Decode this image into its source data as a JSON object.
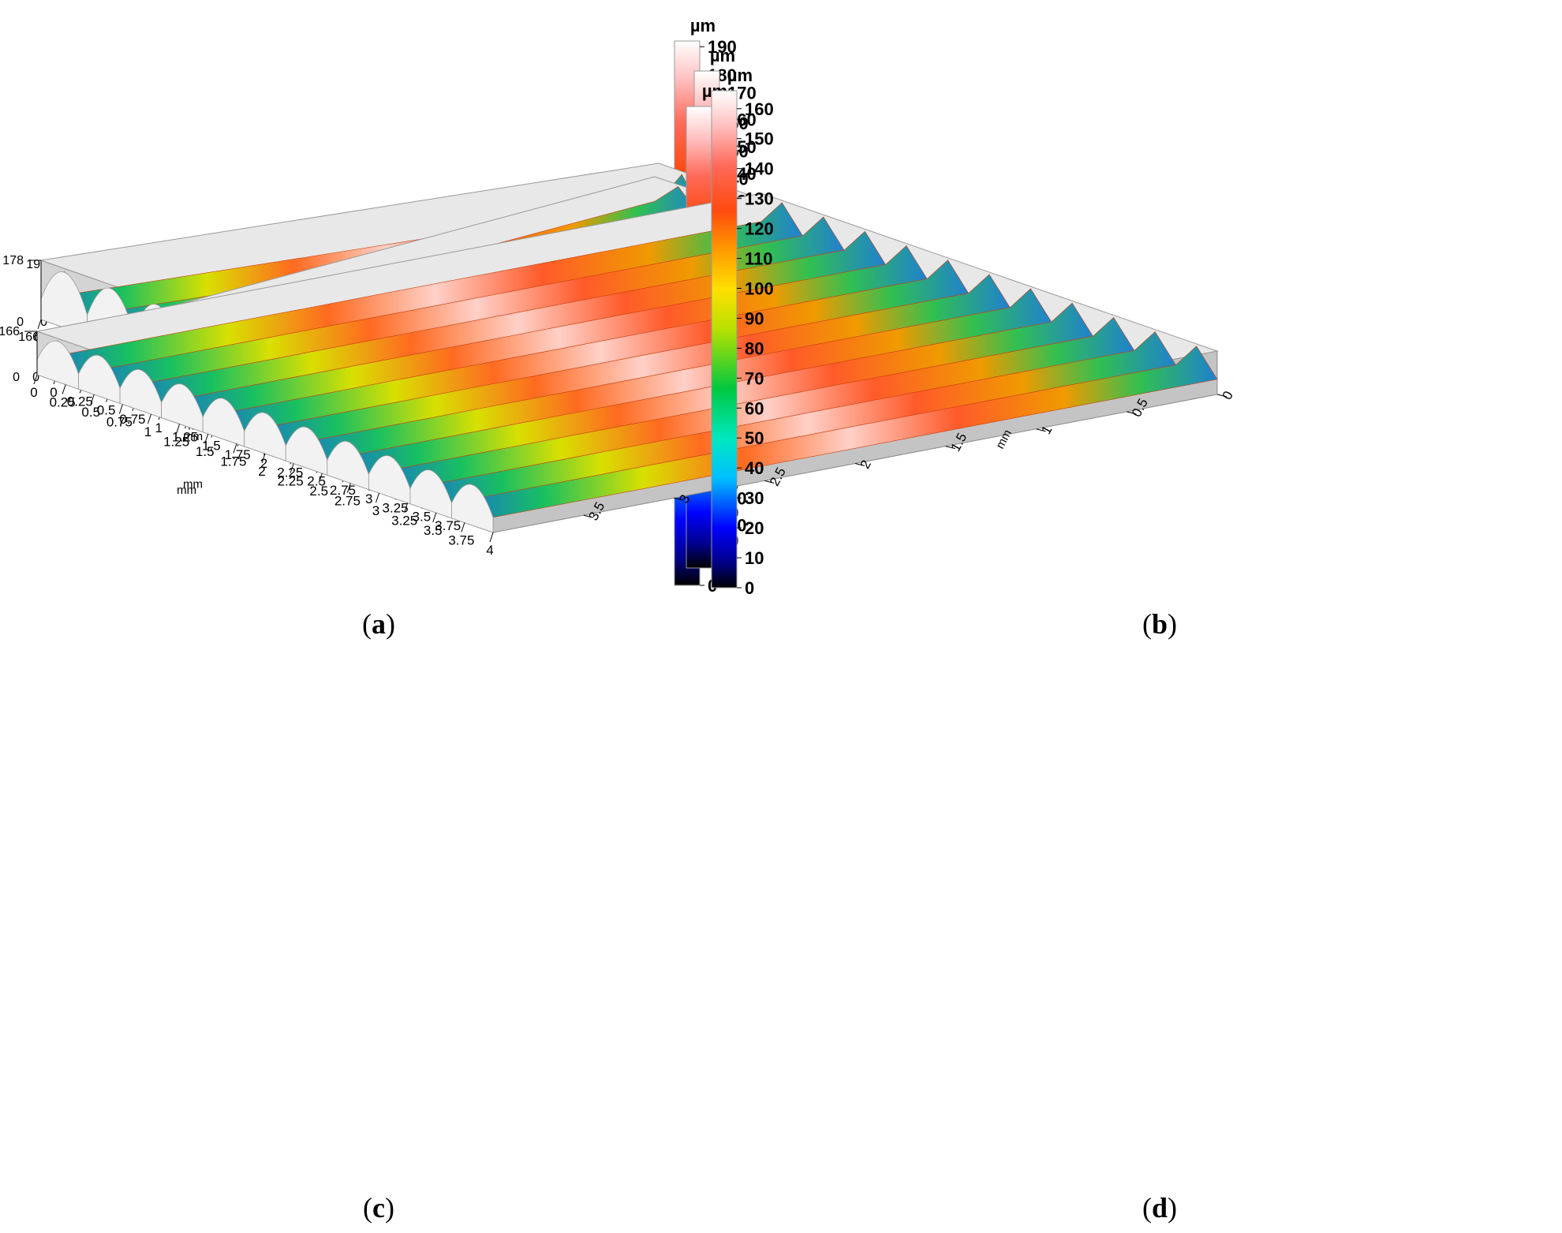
{
  "chart_data": [
    {
      "type": "surface3d",
      "caption": "a",
      "unit": "µm",
      "z_tick_labels": [
        "0",
        "192"
      ],
      "x_axis": {
        "label": "mm",
        "ticks": [
          "0",
          "0.5",
          "1",
          "1.5",
          "2",
          "2.5",
          "3",
          "3.5",
          "4"
        ]
      },
      "y_axis": {
        "label": "mm",
        "ticks": [
          "0",
          "0.5",
          "1",
          "1.5",
          "2",
          "2.5",
          "3",
          "3.5",
          "4"
        ]
      },
      "colorbar": {
        "ticks": [
          "0",
          "10",
          "20",
          "30",
          "40",
          "50",
          "60",
          "70",
          "80",
          "90",
          "100",
          "110",
          "120",
          "130",
          "140",
          "150",
          "160",
          "170",
          "180",
          "190"
        ],
        "range": [
          0,
          192
        ]
      },
      "ridges": 9
    },
    {
      "type": "surface3d",
      "caption": "b",
      "unit": "µm",
      "z_tick_labels": [
        "0",
        "178"
      ],
      "x_axis": {
        "label": "mm",
        "ticks": [
          "0",
          "0.25",
          "0.5",
          "0.75",
          "1",
          "1.25",
          "1.5",
          "1.75",
          "2",
          "2.25",
          "2.5",
          "2.75",
          "3",
          "3.25",
          "3.5",
          "3.75"
        ]
      },
      "y_axis": {
        "label": "mm",
        "ticks": [
          "0",
          "0.5",
          "1",
          "1.5",
          "2",
          "2.5",
          "3",
          "3.5"
        ]
      },
      "colorbar": {
        "ticks": [
          "0",
          "10",
          "20",
          "30",
          "40",
          "50",
          "60",
          "70",
          "80",
          "90",
          "100",
          "110",
          "120",
          "130",
          "140",
          "150",
          "160",
          "170"
        ],
        "range": [
          0,
          178
        ]
      },
      "ridges": 10
    },
    {
      "type": "surface3d",
      "caption": "c",
      "unit": "µm",
      "z_tick_labels": [
        "0",
        "166"
      ],
      "x_axis": {
        "label": "mm",
        "ticks": [
          "0",
          "0.25",
          "0.5",
          "0.75",
          "1",
          "1.25",
          "1.5",
          "1.75",
          "2",
          "2.25",
          "2.5",
          "2.75",
          "3",
          "3.25",
          "3.5",
          "3.75"
        ]
      },
      "y_axis": {
        "label": "mm",
        "ticks": [
          "0",
          "0.5",
          "1",
          "1.5",
          "2",
          "2.5",
          "3",
          "3.5"
        ]
      },
      "colorbar": {
        "ticks": [
          "0",
          "10",
          "20",
          "30",
          "40",
          "50",
          "60",
          "70",
          "80",
          "90",
          "100",
          "110",
          "120",
          "130",
          "140",
          "150",
          "160"
        ],
        "range": [
          0,
          166
        ]
      },
      "ridges": 9
    },
    {
      "type": "surface3d",
      "caption": "d",
      "unit": "µm",
      "z_tick_labels": [
        "0",
        "166"
      ],
      "x_axis": {
        "label": "mm",
        "ticks": [
          "0",
          "0.25",
          "0.5",
          "0.75",
          "1",
          "1.25",
          "1.5",
          "1.75",
          "2",
          "2.25",
          "2.5",
          "2.75",
          "3",
          "3.25",
          "3.5",
          "3.75",
          "4"
        ]
      },
      "y_axis": {
        "label": "mm",
        "ticks": [
          "0",
          "0.5",
          "1",
          "1.5",
          "2",
          "2.5",
          "3",
          "3.5"
        ]
      },
      "colorbar": {
        "ticks": [
          "0",
          "10",
          "20",
          "30",
          "40",
          "50",
          "60",
          "70",
          "80",
          "90",
          "100",
          "110",
          "120",
          "130",
          "140",
          "150",
          "160"
        ],
        "range": [
          0,
          166
        ]
      },
      "ridges": 11
    }
  ]
}
